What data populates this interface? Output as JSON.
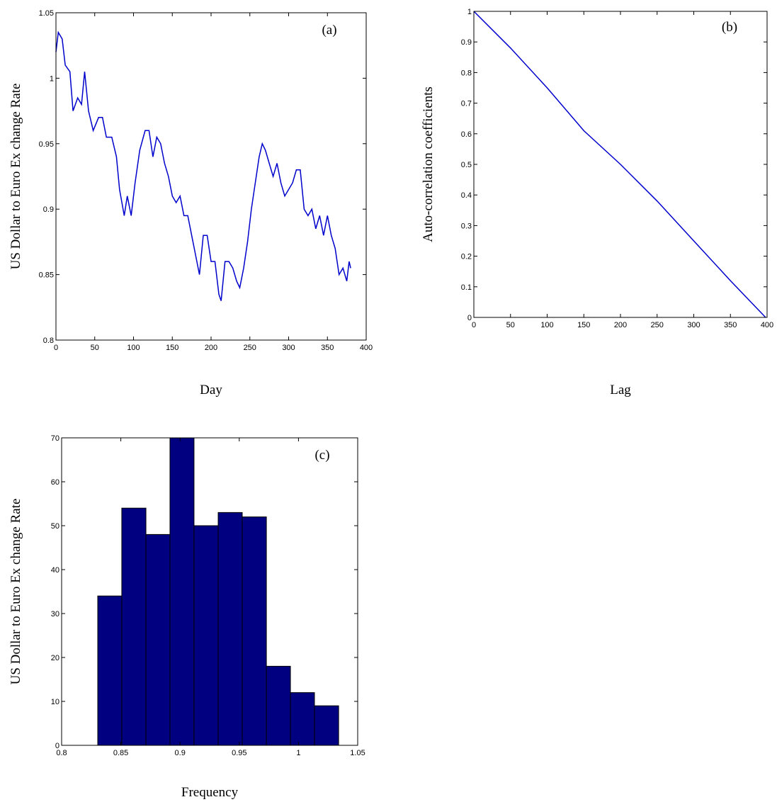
{
  "chart_data": [
    {
      "type": "line",
      "annotation": "(a)",
      "xlabel": "Day",
      "ylabel": "US Dollar to Euro Ex change Rate",
      "color": "#0000cc",
      "x": [
        0,
        3,
        8,
        12,
        18,
        22,
        28,
        33,
        37,
        42,
        48,
        55,
        60,
        65,
        72,
        78,
        82,
        88,
        92,
        97,
        102,
        108,
        115,
        120,
        125,
        130,
        135,
        140,
        145,
        150,
        155,
        160,
        165,
        170,
        175,
        180,
        185,
        190,
        195,
        200,
        205,
        210,
        213,
        218,
        223,
        228,
        233,
        237,
        242,
        247,
        252,
        257,
        262,
        266,
        270,
        275,
        280,
        285,
        290,
        295,
        300,
        305,
        310,
        315,
        320,
        325,
        330,
        335,
        340,
        345,
        350,
        355,
        360,
        365,
        370,
        375,
        378,
        380
      ],
      "values": [
        1.02,
        1.035,
        1.03,
        1.01,
        1.005,
        0.975,
        0.985,
        0.98,
        1.005,
        0.975,
        0.96,
        0.97,
        0.97,
        0.955,
        0.955,
        0.94,
        0.915,
        0.895,
        0.91,
        0.895,
        0.92,
        0.945,
        0.96,
        0.96,
        0.94,
        0.955,
        0.95,
        0.935,
        0.925,
        0.91,
        0.905,
        0.91,
        0.895,
        0.895,
        0.88,
        0.865,
        0.85,
        0.88,
        0.88,
        0.86,
        0.86,
        0.835,
        0.83,
        0.86,
        0.86,
        0.855,
        0.845,
        0.84,
        0.855,
        0.875,
        0.9,
        0.92,
        0.94,
        0.95,
        0.945,
        0.935,
        0.925,
        0.935,
        0.92,
        0.91,
        0.915,
        0.92,
        0.93,
        0.93,
        0.9,
        0.895,
        0.9,
        0.885,
        0.895,
        0.88,
        0.895,
        0.88,
        0.87,
        0.85,
        0.855,
        0.845,
        0.86,
        0.855
      ],
      "xlim": [
        0,
        400
      ],
      "ylim": [
        0.8,
        1.05
      ],
      "xticks": [
        0,
        50,
        100,
        150,
        200,
        250,
        300,
        350,
        400
      ],
      "yticks": [
        0.8,
        0.85,
        0.9,
        0.95,
        1,
        1.05
      ]
    },
    {
      "type": "line",
      "annotation": "(b)",
      "xlabel": "Lag",
      "ylabel": "Auto-correlation coefficients",
      "color": "#0000cc",
      "x": [
        0,
        50,
        100,
        150,
        200,
        250,
        300,
        350,
        398
      ],
      "values": [
        1,
        0.88,
        0.75,
        0.61,
        0.5,
        0.38,
        0.25,
        0.12,
        0
      ],
      "xlim": [
        0,
        400
      ],
      "ylim": [
        0,
        1
      ],
      "xticks": [
        0,
        50,
        100,
        150,
        200,
        250,
        300,
        350,
        400
      ],
      "yticks": [
        0,
        0.1,
        0.2,
        0.3,
        0.4,
        0.5,
        0.6,
        0.7,
        0.8,
        0.9,
        1
      ]
    },
    {
      "type": "histogram",
      "annotation": "(c)",
      "xlabel": "Frequency",
      "ylabel": "US Dollar to Euro Ex change Rate",
      "color": "#000080",
      "bins": [
        0.8305,
        0.8508,
        0.8712,
        0.8915,
        0.9118,
        0.9322,
        0.9525,
        0.9729,
        0.9932,
        1.0135,
        1.0339
      ],
      "values": [
        34,
        54,
        48,
        70,
        50,
        53,
        52,
        18,
        12,
        9
      ],
      "xlim": [
        0.8,
        1.05
      ],
      "ylim": [
        0,
        70
      ],
      "xticks": [
        0.8,
        0.85,
        0.9,
        0.95,
        1,
        1.05
      ],
      "yticks": [
        0,
        10,
        20,
        30,
        40,
        50,
        60,
        70
      ]
    }
  ]
}
